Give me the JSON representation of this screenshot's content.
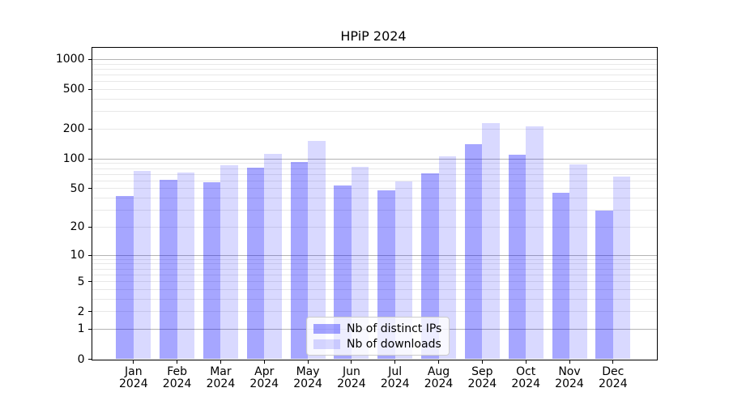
{
  "title": "HPiP 2024",
  "chart_data": {
    "type": "bar",
    "title": "HPiP 2024",
    "y_scale": "log1p",
    "xlabel": "",
    "ylabel": "",
    "grid": true,
    "legend_position": "lower center",
    "categories": [
      "Jan 2024",
      "Feb 2024",
      "Mar 2024",
      "Apr 2024",
      "May 2024",
      "Jun 2024",
      "Jul 2024",
      "Aug 2024",
      "Sep 2024",
      "Oct 2024",
      "Nov 2024",
      "Dec 2024"
    ],
    "series": [
      {
        "name": "Nb of distinct IPs",
        "color": "rgba(0,0,255,0.35)",
        "values": [
          42,
          61,
          58,
          82,
          93,
          54,
          48,
          71,
          140,
          110,
          45,
          30
        ]
      },
      {
        "name": "Nb of downloads",
        "color": "rgba(0,0,255,0.15)",
        "values": [
          76,
          73,
          86,
          113,
          152,
          83,
          59,
          106,
          230,
          215,
          88,
          66
        ]
      }
    ],
    "y_ticks": [
      0,
      1,
      2,
      5,
      10,
      20,
      50,
      100,
      200,
      500,
      1000
    ],
    "ylim": [
      0,
      1320
    ],
    "colors": {
      "major_grid": "#b4b4b4",
      "minor_grid": "#e8e8e8",
      "spine": "#000000",
      "text": "#000000",
      "background": "#ffffff"
    }
  }
}
